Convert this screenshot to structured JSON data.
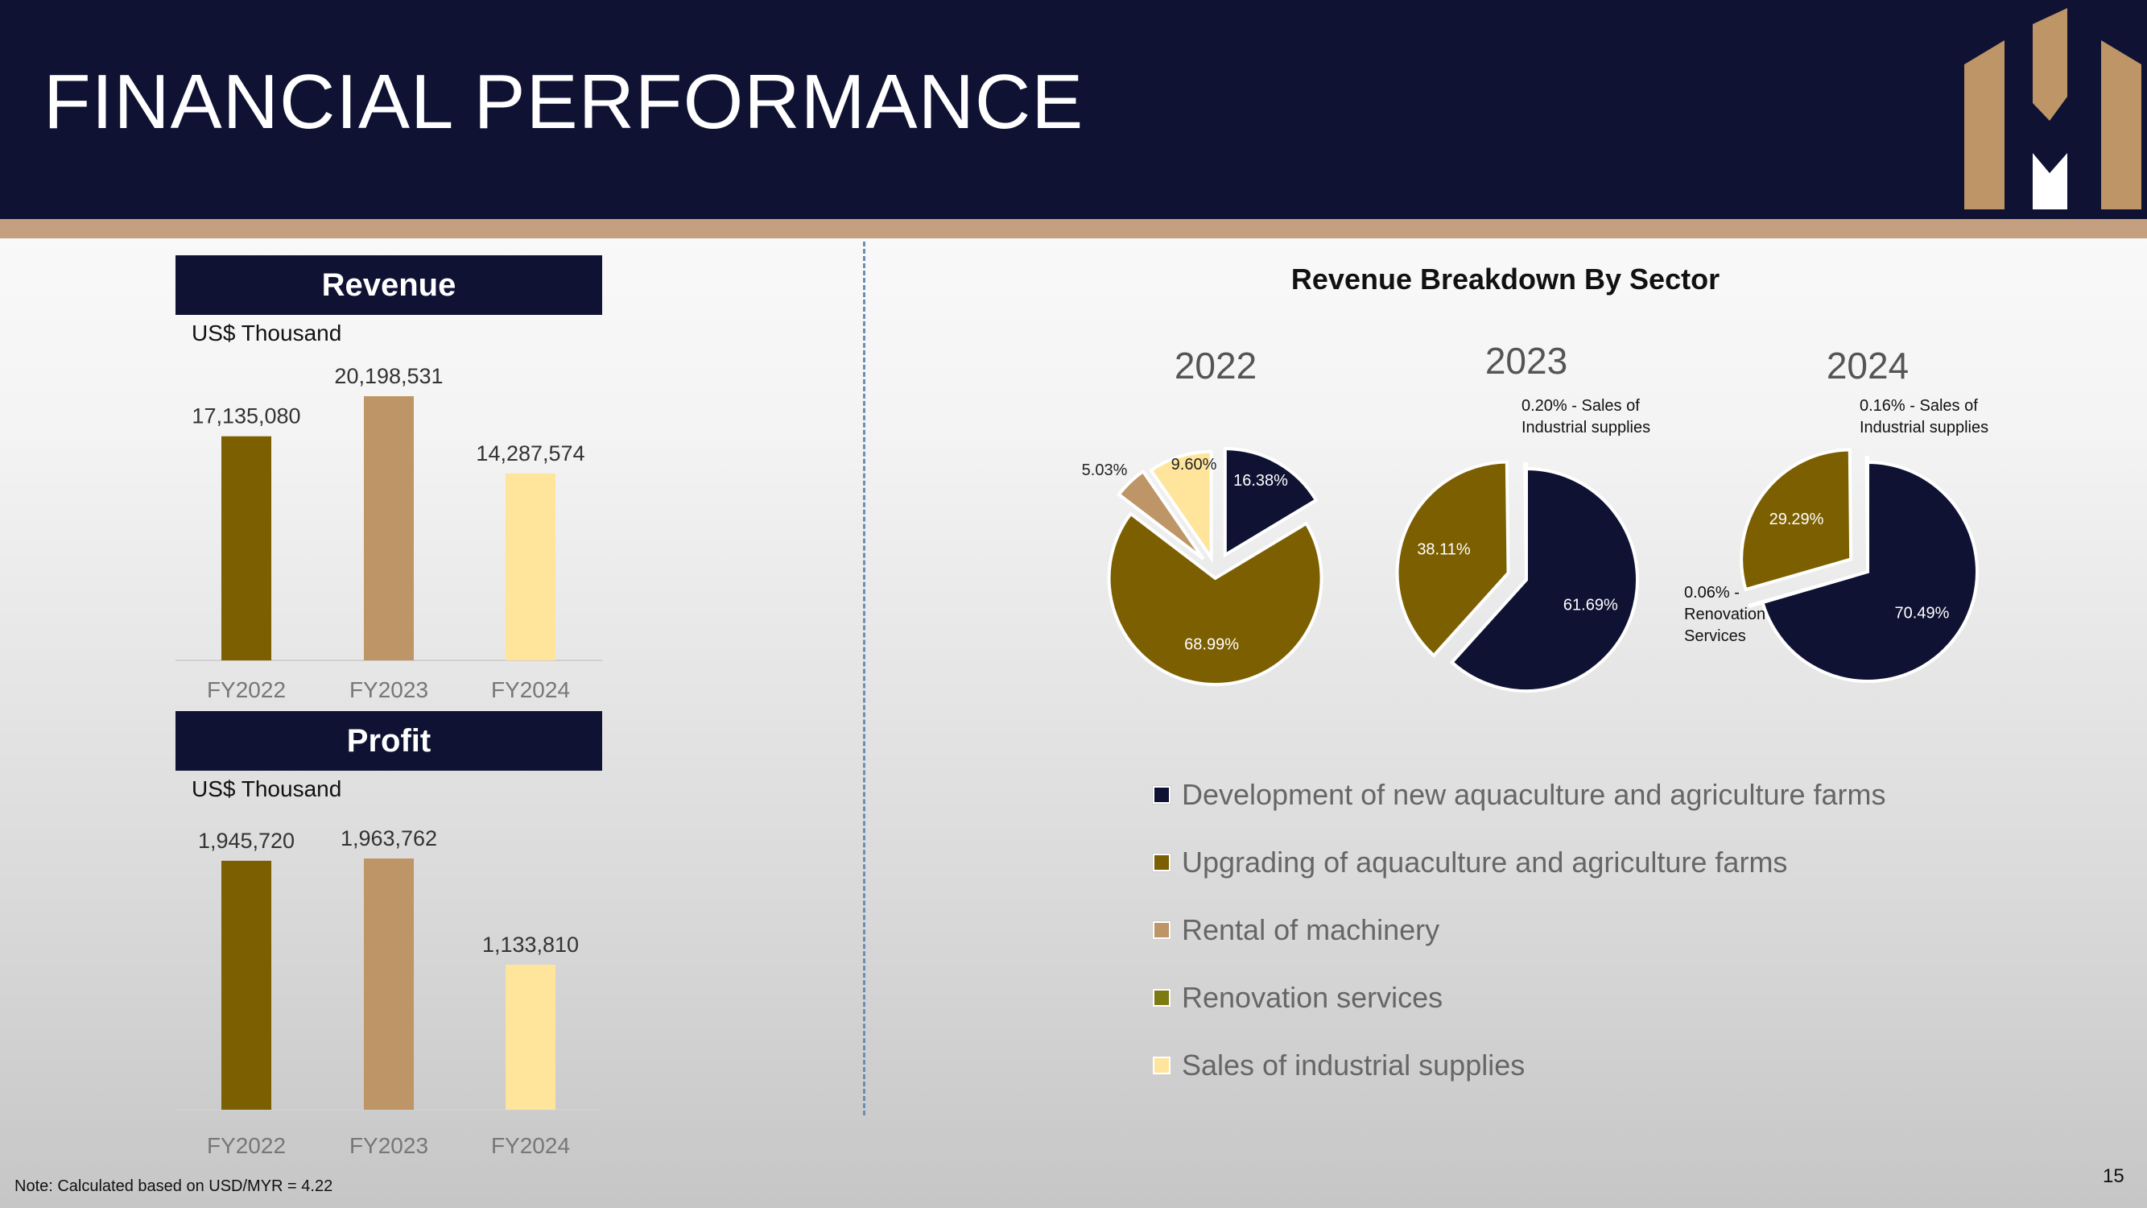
{
  "page": {
    "title": "FINANCIAL PERFORMANCE",
    "footnote": "Note: Calculated based on USD/MYR = 4.22",
    "page_number": "15"
  },
  "colors": {
    "navy": "#0f1233",
    "olive": "#7c5f00",
    "tan": "#bd9566",
    "yellow": "#ffe49c",
    "green": "#7e7a12",
    "stripe": "#c4a07f"
  },
  "revenue_panel": {
    "header": "Revenue",
    "unit": "US$ Thousand"
  },
  "profit_panel": {
    "header": "Profit",
    "unit": "US$ Thousand"
  },
  "pie_panel": {
    "title": "Revenue Breakdown By Sector"
  },
  "legend": [
    {
      "label": "Development of new aquaculture and agriculture farms",
      "color": "#0f1233"
    },
    {
      "label": "Upgrading of aquaculture and agriculture farms",
      "color": "#7c5f00"
    },
    {
      "label": "Rental of machinery",
      "color": "#bd9566"
    },
    {
      "label": "Renovation services",
      "color": "#7e7a12"
    },
    {
      "label": "Sales of industrial supplies",
      "color": "#ffe49c"
    }
  ],
  "chart_data": [
    {
      "type": "bar",
      "title": "Revenue",
      "ylabel": "US$ Thousand",
      "categories": [
        "FY2022",
        "FY2023",
        "FY2024"
      ],
      "values": [
        17135080,
        20198531,
        14287574
      ],
      "labels": [
        "17,135,080",
        "20,198,531",
        "14,287,574"
      ],
      "colors": [
        "#7c5f00",
        "#bd9566",
        "#ffe49c"
      ]
    },
    {
      "type": "bar",
      "title": "Profit",
      "ylabel": "US$ Thousand",
      "categories": [
        "FY2022",
        "FY2023",
        "FY2024"
      ],
      "values": [
        1945720,
        1963762,
        1133810
      ],
      "labels": [
        "1,945,720",
        "1,963,762",
        "1,133,810"
      ],
      "colors": [
        "#7c5f00",
        "#bd9566",
        "#ffe49c"
      ]
    },
    {
      "type": "pie",
      "title": "2022",
      "slices": [
        {
          "name": "Development of new aquaculture and agriculture farms",
          "value": 16.38,
          "label": "16.38%"
        },
        {
          "name": "Upgrading of aquaculture and agriculture farms",
          "value": 68.99,
          "label": "68.99%"
        },
        {
          "name": "Rental of machinery",
          "value": 5.03,
          "label": "5.03%"
        },
        {
          "name": "Sales of industrial supplies",
          "value": 9.6,
          "label": "9.60%"
        }
      ]
    },
    {
      "type": "pie",
      "title": "2023",
      "slices": [
        {
          "name": "Development of new aquaculture and agriculture farms",
          "value": 61.69,
          "label": "61.69%"
        },
        {
          "name": "Upgrading of aquaculture and agriculture farms",
          "value": 38.11,
          "label": "38.11%"
        },
        {
          "name": "Sales of industrial supplies",
          "value": 0.2,
          "label": "0.20% - Sales of Industrial supplies"
        }
      ]
    },
    {
      "type": "pie",
      "title": "2024",
      "slices": [
        {
          "name": "Development of new aquaculture and agriculture farms",
          "value": 70.49,
          "label": "70.49%"
        },
        {
          "name": "Renovation services",
          "value": 0.06,
          "label": "0.06% - Renovation Services"
        },
        {
          "name": "Upgrading of aquaculture and agriculture farms",
          "value": 29.29,
          "label": "29.29%"
        },
        {
          "name": "Sales of industrial supplies",
          "value": 0.16,
          "label": "0.16% - Sales of Industrial supplies"
        }
      ]
    }
  ]
}
